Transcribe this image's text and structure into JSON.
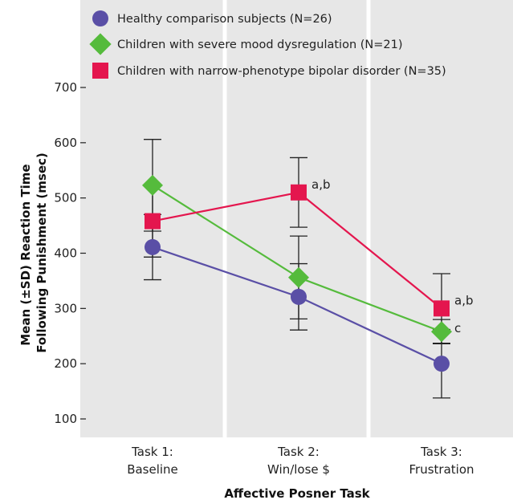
{
  "chart_data": {
    "type": "line",
    "title": "",
    "xlabel": "Affective Posner Task",
    "ylabel_lines": [
      "Mean (±SD) Reaction Time",
      "Following Punishment (msec)"
    ],
    "ylim": [
      50,
      720
    ],
    "yticks": [
      100,
      200,
      300,
      400,
      500,
      600,
      700
    ],
    "categories": [
      {
        "line1": "Task 1:",
        "line2": "Baseline"
      },
      {
        "line1": "Task 2:",
        "line2": "Win/lose $"
      },
      {
        "line1": "Task 3:",
        "line2": "Frustration"
      }
    ],
    "legend_position": "top-left",
    "series": [
      {
        "name": "Healthy comparison subjects (N=26)",
        "marker": "circle",
        "color": "#5a4fa6",
        "values": [
          411,
          321,
          200
        ],
        "sd": [
          59,
          60,
          62
        ],
        "labels": [
          "",
          "",
          ""
        ]
      },
      {
        "name": "Children with severe mood dysregulation (N=21)",
        "marker": "diamond",
        "color": "#55bb3c",
        "values": [
          523,
          356,
          258
        ],
        "sd": [
          83,
          75,
          22
        ],
        "labels": [
          "",
          "",
          "c"
        ]
      },
      {
        "name": "Children with narrow-phenotype bipolar disorder (N=35)",
        "marker": "square",
        "color": "#e4164e",
        "values": [
          458,
          510,
          300
        ],
        "sd": [
          65,
          63,
          63
        ],
        "labels": [
          "",
          "a,b",
          "a,b"
        ]
      }
    ]
  }
}
